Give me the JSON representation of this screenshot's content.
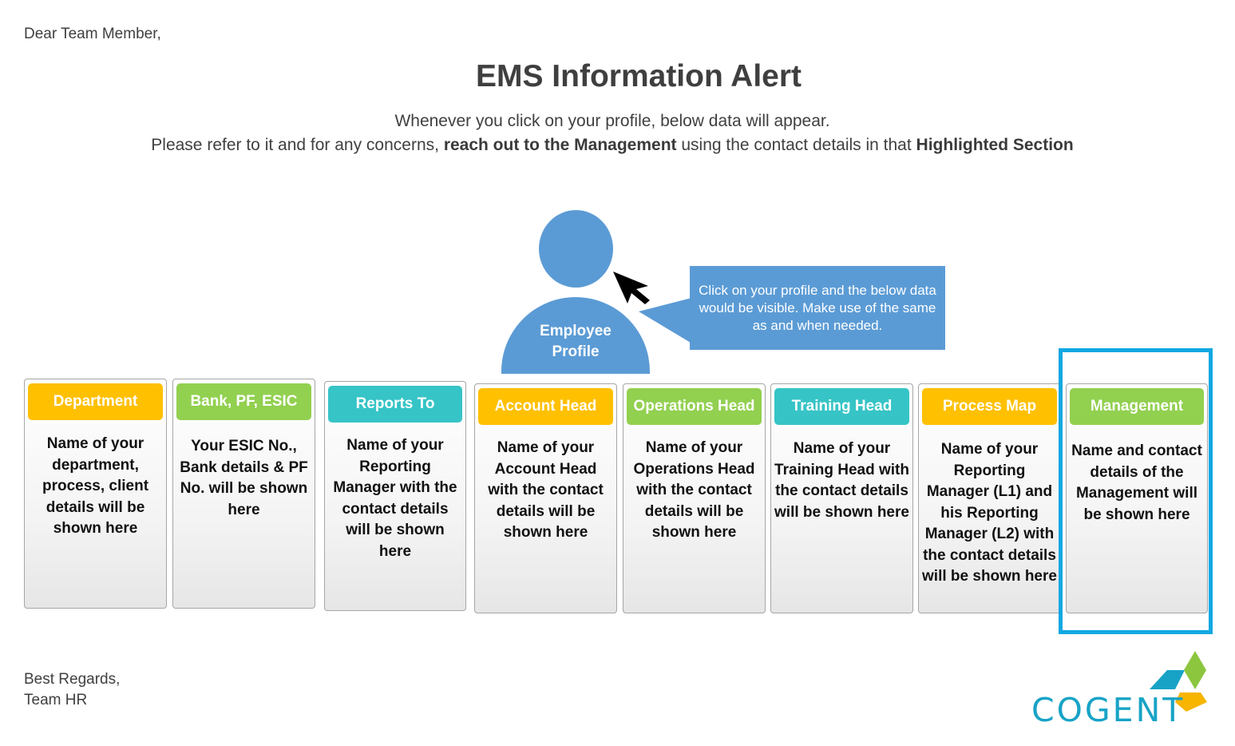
{
  "greeting": "Dear Team Member,",
  "title": "EMS Information Alert",
  "subtitle_line1": "Whenever you click on your profile, below data will appear.",
  "subtitle_line2": {
    "part1": "Please refer to it and for any concerns, ",
    "bold1": "reach out to the Management",
    "part2": " using the contact details in that ",
    "bold2": "Highlighted Section"
  },
  "profile": {
    "line1": "Employee",
    "line2": "Profile"
  },
  "callout": "Click on your profile and the below data would be visible. Make use of the same as and when needed.",
  "cards": [
    {
      "header": "Department",
      "text": "Name of your department, process, client details will be shown here",
      "color": "#ffc000"
    },
    {
      "header": "Bank, PF, ESIC",
      "text": "Your ESIC No., Bank details & PF No. will be shown here",
      "color": "#92d050"
    },
    {
      "header": "Reports To",
      "text": "Name of your Reporting Manager with the contact details will be shown here",
      "color": "#36c4c6"
    },
    {
      "header": "Account Head",
      "text": "Name of your Account Head with the contact details will be shown here",
      "color": "#ffc000"
    },
    {
      "header": "Operations Head",
      "text": "Name of your Operations Head with the contact details will be shown here",
      "color": "#92d050"
    },
    {
      "header": "Training Head",
      "text": "Name of your Training Head with the contact details will be shown here",
      "color": "#36c4c6"
    },
    {
      "header": "Process Map",
      "text": "Name of your Reporting Manager (L1) and his Reporting Manager (L2) with the contact details will be shown here",
      "color": "#ffc000"
    },
    {
      "header": "Management",
      "text": "Name and contact details of the Management will be shown here",
      "color": "#92d050"
    }
  ],
  "highlight_color": "#12a8e2",
  "signoff": {
    "line1": "Best Regards,",
    "line2": "Team HR"
  },
  "logo": {
    "text": "COGENT",
    "icon": "cogent-logo-icon"
  }
}
